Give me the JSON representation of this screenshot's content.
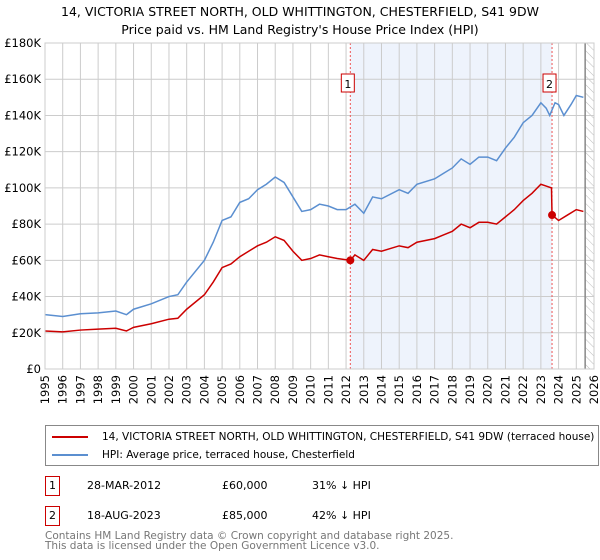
{
  "header": {
    "title": "14, VICTORIA STREET NORTH, OLD WHITTINGTON, CHESTERFIELD, S41 9DW",
    "subtitle": "Price paid vs. HM Land Registry's House Price Index (HPI)"
  },
  "chart_data": {
    "type": "line",
    "xlim": [
      1995,
      2026
    ],
    "ylim": [
      0,
      180000
    ],
    "yticks": [
      0,
      20000,
      40000,
      60000,
      80000,
      100000,
      120000,
      140000,
      160000,
      180000
    ],
    "ytick_labels": [
      "£0",
      "£20K",
      "£40K",
      "£60K",
      "£80K",
      "£100K",
      "£120K",
      "£140K",
      "£160K",
      "£180K"
    ],
    "xticks": [
      1995,
      1996,
      1997,
      1998,
      1999,
      2000,
      2001,
      2002,
      2003,
      2004,
      2005,
      2006,
      2007,
      2008,
      2009,
      2010,
      2011,
      2012,
      2013,
      2014,
      2015,
      2016,
      2017,
      2018,
      2019,
      2020,
      2021,
      2022,
      2023,
      2024,
      2025,
      2026
    ],
    "grid": true,
    "shaded_range": [
      2012.24,
      2023.63
    ],
    "hatched_from": 2025.5,
    "colors": {
      "property": "#cc0000",
      "hpi": "#5b8fd0",
      "shade": "#eef3fc"
    },
    "series": [
      {
        "name": "14, VICTORIA STREET NORTH, OLD WHITTINGTON, CHESTERFIELD, S41 9DW (terraced house)",
        "key": "property",
        "x": [
          1995,
          1996,
          1997,
          1998,
          1999,
          1999.6,
          2000,
          2001,
          2002,
          2002.5,
          2003,
          2004,
          2004.5,
          2005,
          2005.5,
          2006,
          2006.5,
          2007,
          2007.5,
          2008,
          2008.5,
          2009,
          2009.5,
          2010,
          2010.5,
          2011,
          2011.5,
          2012.24,
          2012.5,
          2013,
          2013.5,
          2014,
          2015,
          2015.5,
          2016,
          2017,
          2017.5,
          2018,
          2018.5,
          2019,
          2019.5,
          2020,
          2020.5,
          2021,
          2021.5,
          2022,
          2022.5,
          2023,
          2023.3,
          2023.6,
          2023.63,
          2024,
          2024.5,
          2025,
          2025.4
        ],
        "y": [
          21000,
          20500,
          21500,
          22000,
          22500,
          21000,
          23000,
          25000,
          27500,
          28000,
          33000,
          41000,
          48000,
          56000,
          58000,
          62000,
          65000,
          68000,
          70000,
          73000,
          71000,
          65000,
          60000,
          61000,
          63000,
          62000,
          61000,
          60000,
          63000,
          60000,
          66000,
          65000,
          68000,
          67000,
          70000,
          72000,
          74000,
          76000,
          80000,
          78000,
          81000,
          81000,
          80000,
          84000,
          88000,
          93000,
          97000,
          102000,
          101000,
          100000,
          85000,
          82000,
          85000,
          88000,
          87000
        ]
      },
      {
        "name": "HPI: Average price, terraced house, Chesterfield",
        "key": "hpi",
        "x": [
          1995,
          1996,
          1997,
          1998,
          1999,
          1999.6,
          2000,
          2001,
          2002,
          2002.5,
          2003,
          2004,
          2004.5,
          2005,
          2005.5,
          2006,
          2006.5,
          2007,
          2007.5,
          2008,
          2008.5,
          2009,
          2009.5,
          2010,
          2010.5,
          2011,
          2011.5,
          2012,
          2012.5,
          2013,
          2013.5,
          2014,
          2015,
          2015.5,
          2016,
          2017,
          2017.5,
          2018,
          2018.5,
          2019,
          2019.5,
          2020,
          2020.5,
          2021,
          2021.5,
          2022,
          2022.5,
          2023,
          2023.3,
          2023.5,
          2023.8,
          2024,
          2024.3,
          2024.7,
          2025,
          2025.4
        ],
        "y": [
          30000,
          29000,
          30500,
          31000,
          32000,
          30000,
          33000,
          36000,
          40000,
          41000,
          48000,
          60000,
          70000,
          82000,
          84000,
          92000,
          94000,
          99000,
          102000,
          106000,
          103000,
          95000,
          87000,
          88000,
          91000,
          90000,
          88000,
          88000,
          91000,
          86000,
          95000,
          94000,
          99000,
          97000,
          102000,
          105000,
          108000,
          111000,
          116000,
          113000,
          117000,
          117000,
          115000,
          122000,
          128000,
          136000,
          140000,
          147000,
          144000,
          140000,
          147000,
          146000,
          140000,
          146000,
          151000,
          150000
        ]
      }
    ],
    "sales": [
      {
        "label": "1",
        "x": 2012.24,
        "y": 60000
      },
      {
        "label": "2",
        "x": 2023.63,
        "y": 85000
      }
    ]
  },
  "legend": {
    "property": "14, VICTORIA STREET NORTH, OLD WHITTINGTON, CHESTERFIELD, S41 9DW (terraced house)",
    "hpi": "HPI: Average price, terraced house, Chesterfield"
  },
  "transactions": [
    {
      "num": "1",
      "date": "28-MAR-2012",
      "price": "£60,000",
      "delta": "31% ↓ HPI"
    },
    {
      "num": "2",
      "date": "18-AUG-2023",
      "price": "£85,000",
      "delta": "42% ↓ HPI"
    }
  ],
  "footer": {
    "line1": "Contains HM Land Registry data © Crown copyright and database right 2025.",
    "line2": "This data is licensed under the Open Government Licence v3.0."
  }
}
